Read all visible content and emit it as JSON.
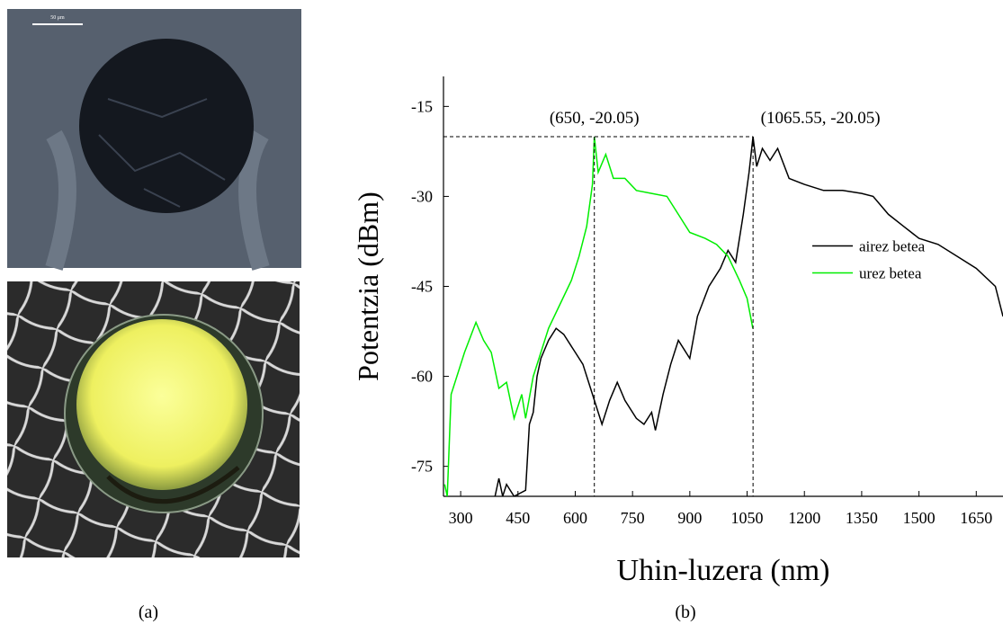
{
  "panels": {
    "scale_bar": "50 μm",
    "caption_a": "(a)",
    "caption_b": "(b)"
  },
  "chart_data": {
    "type": "line",
    "xlabel": "Uhin-luzera (nm)",
    "ylabel": "Potentzia (dBm)",
    "xlim": [
      255,
      1720
    ],
    "ylim": [
      -80,
      -10
    ],
    "xticks": [
      300,
      450,
      600,
      750,
      900,
      1050,
      1200,
      1350,
      1500,
      1650
    ],
    "yticks": [
      -75,
      -60,
      -45,
      -30,
      -15
    ],
    "legend": "right",
    "annotations": [
      {
        "text": "(650, -20.05)",
        "x": 650,
        "y": -20.05
      },
      {
        "text": "(1065.55, -20.05)",
        "x": 1065.55,
        "y": -20.05
      }
    ],
    "series": [
      {
        "name": "airez betea",
        "color": "#000000",
        "x": [
          390,
          400,
          410,
          420,
          440,
          470,
          480,
          490,
          500,
          510,
          530,
          550,
          570,
          600,
          620,
          640,
          660,
          670,
          690,
          710,
          730,
          760,
          780,
          800,
          810,
          830,
          850,
          870,
          900,
          920,
          950,
          980,
          1000,
          1020,
          1040,
          1055,
          1065.55,
          1075,
          1090,
          1110,
          1130,
          1160,
          1200,
          1250,
          1300,
          1350,
          1380,
          1420,
          1460,
          1500,
          1550,
          1600,
          1650,
          1700,
          1720
        ],
        "values": [
          -80,
          -77,
          -80,
          -78,
          -80,
          -79,
          -68,
          -66,
          -60,
          -57,
          -54,
          -52,
          -53,
          -56,
          -58,
          -62,
          -66,
          -68,
          -64,
          -61,
          -64,
          -67,
          -68,
          -66,
          -69,
          -63,
          -58,
          -54,
          -57,
          -50,
          -45,
          -42,
          -39,
          -41,
          -33,
          -26,
          -20.05,
          -25,
          -22,
          -24,
          -22,
          -27,
          -28,
          -29,
          -29,
          -29.5,
          -30,
          -33,
          -35,
          -37,
          -38,
          -40,
          -42,
          -45,
          -50
        ]
      },
      {
        "name": "urez betea",
        "color": "#00ee00",
        "x": [
          258,
          265,
          275,
          290,
          310,
          340,
          360,
          380,
          400,
          420,
          440,
          460,
          470,
          490,
          510,
          530,
          560,
          590,
          610,
          630,
          645,
          650,
          660,
          680,
          700,
          730,
          760,
          800,
          840,
          870,
          900,
          940,
          970,
          1000,
          1030,
          1050,
          1065
        ],
        "values": [
          -78,
          -80,
          -63,
          -60,
          -56,
          -51,
          -54,
          -56,
          -62,
          -61,
          -67,
          -63,
          -67,
          -60,
          -56,
          -52,
          -48,
          -44,
          -40,
          -35,
          -28,
          -20.05,
          -26,
          -23,
          -27,
          -27,
          -29,
          -29.5,
          -30,
          -33,
          -36,
          -37,
          -38,
          -40,
          -44,
          -47,
          -52
        ]
      }
    ]
  }
}
